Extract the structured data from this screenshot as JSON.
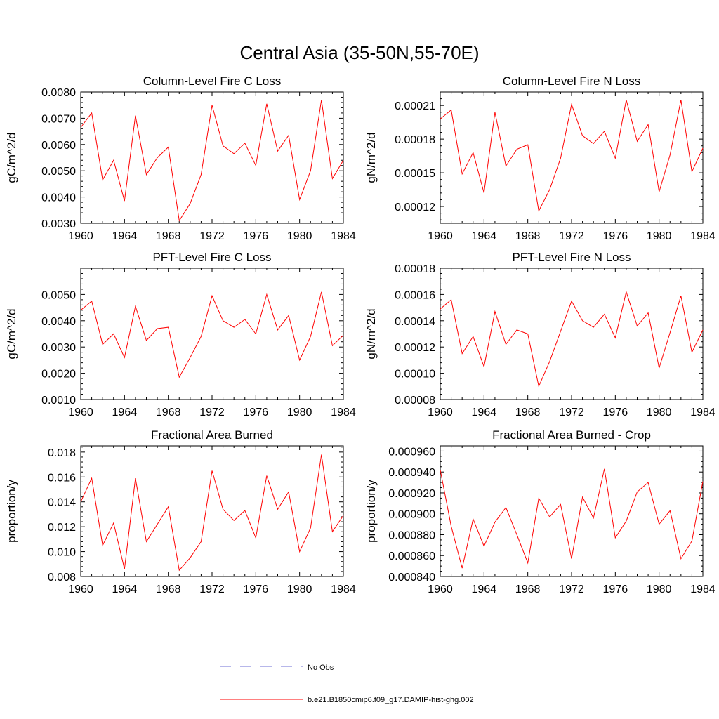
{
  "figure": {
    "title": "Central Asia (35-50N,55-70E)"
  },
  "colors": {
    "model_line": "#ff0000",
    "obs_line": "#6f6fd6",
    "axis": "#000000"
  },
  "legend": {
    "obs_label": "No Obs",
    "model_label": "b.e21.B1850cmip6.f09_g17.DAMIP-hist-ghg.002",
    "placement": "bottom-center"
  },
  "chart_data": [
    {
      "type": "line",
      "title": "Column-Level Fire C Loss",
      "ylabel": "gC/m^2/d",
      "xlim": [
        1960,
        1984
      ],
      "ylim": [
        0.003,
        0.008
      ],
      "xticks": [
        1960,
        1964,
        1968,
        1972,
        1976,
        1980,
        1984
      ],
      "xtick_labels": [
        "1960",
        "1964",
        "1968",
        "1972",
        "1976",
        "1980",
        "1984"
      ],
      "yticks": [
        0.003,
        0.004,
        0.005,
        0.006,
        0.007,
        0.008
      ],
      "ytick_labels": [
        "0.0030",
        "0.0040",
        "0.0050",
        "0.0060",
        "0.0070",
        "0.0080"
      ],
      "yminor": 0.0002,
      "x": [
        1960,
        1961,
        1962,
        1963,
        1964,
        1965,
        1966,
        1967,
        1968,
        1969,
        1970,
        1971,
        1972,
        1973,
        1974,
        1975,
        1976,
        1977,
        1978,
        1979,
        1980,
        1981,
        1982,
        1983,
        1984
      ],
      "values": [
        0.00665,
        0.0072,
        0.00465,
        0.0054,
        0.00385,
        0.0071,
        0.00485,
        0.0055,
        0.0059,
        0.0031,
        0.00375,
        0.00485,
        0.0075,
        0.00595,
        0.00565,
        0.00605,
        0.0052,
        0.00755,
        0.00575,
        0.00635,
        0.0039,
        0.005,
        0.0077,
        0.0047,
        0.0054
      ]
    },
    {
      "type": "line",
      "title": "Column-Level Fire N Loss",
      "ylabel": "gN/m^2/d",
      "xlim": [
        1960,
        1984
      ],
      "ylim": [
        0.000105,
        0.000222
      ],
      "xticks": [
        1960,
        1964,
        1968,
        1972,
        1976,
        1980,
        1984
      ],
      "xtick_labels": [
        "1960",
        "1964",
        "1968",
        "1972",
        "1976",
        "1980",
        "1984"
      ],
      "yticks": [
        0.00012,
        0.00015,
        0.00018,
        0.00021
      ],
      "ytick_labels": [
        "0.00012",
        "0.00015",
        "0.00018",
        "0.00021"
      ],
      "yminor": 6e-06,
      "x": [
        1960,
        1961,
        1962,
        1963,
        1964,
        1965,
        1966,
        1967,
        1968,
        1969,
        1970,
        1971,
        1972,
        1973,
        1974,
        1975,
        1976,
        1977,
        1978,
        1979,
        1980,
        1981,
        1982,
        1983,
        1984
      ],
      "values": [
        0.000198,
        0.000206,
        0.000149,
        0.000168,
        0.000132,
        0.000204,
        0.000156,
        0.000171,
        0.000175,
        0.000116,
        0.000135,
        0.000163,
        0.000211,
        0.000183,
        0.000176,
        0.000187,
        0.000163,
        0.000215,
        0.000178,
        0.000193,
        0.000133,
        0.000166,
        0.000215,
        0.000151,
        0.000172
      ]
    },
    {
      "type": "line",
      "title": "PFT-Level Fire C Loss",
      "ylabel": "gC/m^2/d",
      "xlim": [
        1960,
        1984
      ],
      "ylim": [
        0.001,
        0.006
      ],
      "xticks": [
        1960,
        1964,
        1968,
        1972,
        1976,
        1980,
        1984
      ],
      "xtick_labels": [
        "1960",
        "1964",
        "1968",
        "1972",
        "1976",
        "1980",
        "1984"
      ],
      "yticks": [
        0.001,
        0.002,
        0.003,
        0.004,
        0.005
      ],
      "ytick_labels": [
        "0.0010",
        "0.0020",
        "0.0030",
        "0.0040",
        "0.0050"
      ],
      "yminor": 0.0002,
      "x": [
        1960,
        1961,
        1962,
        1963,
        1964,
        1965,
        1966,
        1967,
        1968,
        1969,
        1970,
        1971,
        1972,
        1973,
        1974,
        1975,
        1976,
        1977,
        1978,
        1979,
        1980,
        1981,
        1982,
        1983,
        1984
      ],
      "values": [
        0.0044,
        0.00475,
        0.0031,
        0.0035,
        0.0026,
        0.00455,
        0.00325,
        0.0037,
        0.00375,
        0.00185,
        0.0026,
        0.0034,
        0.00495,
        0.004,
        0.00375,
        0.00405,
        0.0035,
        0.005,
        0.00365,
        0.0042,
        0.0025,
        0.0034,
        0.0051,
        0.00305,
        0.00345
      ]
    },
    {
      "type": "line",
      "title": "PFT-Level Fire N Loss",
      "ylabel": "gN/m^2/d",
      "xlim": [
        1960,
        1984
      ],
      "ylim": [
        8e-05,
        0.00018
      ],
      "xticks": [
        1960,
        1964,
        1968,
        1972,
        1976,
        1980,
        1984
      ],
      "xtick_labels": [
        "1960",
        "1964",
        "1968",
        "1972",
        "1976",
        "1980",
        "1984"
      ],
      "yticks": [
        8e-05,
        0.0001,
        0.00012,
        0.00014,
        0.00016,
        0.00018
      ],
      "ytick_labels": [
        "0.00008",
        "0.00010",
        "0.00012",
        "0.00014",
        "0.00016",
        "0.00018"
      ],
      "yminor": 4e-06,
      "x": [
        1960,
        1961,
        1962,
        1963,
        1964,
        1965,
        1966,
        1967,
        1968,
        1969,
        1970,
        1971,
        1972,
        1973,
        1974,
        1975,
        1976,
        1977,
        1978,
        1979,
        1980,
        1981,
        1982,
        1983,
        1984
      ],
      "values": [
        0.000149,
        0.000156,
        0.000115,
        0.000128,
        0.000105,
        0.000147,
        0.000122,
        0.000133,
        0.00013,
        9e-05,
        0.000109,
        0.000132,
        0.000155,
        0.00014,
        0.000135,
        0.000145,
        0.000127,
        0.000162,
        0.000136,
        0.000146,
        0.000104,
        0.000131,
        0.000159,
        0.000116,
        0.000133
      ]
    },
    {
      "type": "line",
      "title": "Fractional Area Burned",
      "ylabel": "proportion/y",
      "xlim": [
        1960,
        1984
      ],
      "ylim": [
        0.008,
        0.0185
      ],
      "xticks": [
        1960,
        1964,
        1968,
        1972,
        1976,
        1980,
        1984
      ],
      "xtick_labels": [
        "1960",
        "1964",
        "1968",
        "1972",
        "1976",
        "1980",
        "1984"
      ],
      "yticks": [
        0.008,
        0.01,
        0.012,
        0.014,
        0.016,
        0.018
      ],
      "ytick_labels": [
        "0.008",
        "0.010",
        "0.012",
        "0.014",
        "0.016",
        "0.018"
      ],
      "yminor": 0.0004,
      "x": [
        1960,
        1961,
        1962,
        1963,
        1964,
        1965,
        1966,
        1967,
        1968,
        1969,
        1970,
        1971,
        1972,
        1973,
        1974,
        1975,
        1976,
        1977,
        1978,
        1979,
        1980,
        1981,
        1982,
        1983,
        1984
      ],
      "values": [
        0.014,
        0.0159,
        0.0105,
        0.0123,
        0.0086,
        0.0159,
        0.0108,
        0.0122,
        0.0136,
        0.0085,
        0.0095,
        0.0108,
        0.0165,
        0.0134,
        0.0125,
        0.0133,
        0.0111,
        0.0161,
        0.0134,
        0.0148,
        0.01,
        0.0119,
        0.0178,
        0.0116,
        0.0129
      ]
    },
    {
      "type": "line",
      "title": "Fractional Area Burned - Crop",
      "ylabel": "proportion/y",
      "xlim": [
        1960,
        1984
      ],
      "ylim": [
        0.00084,
        0.000965
      ],
      "xticks": [
        1960,
        1964,
        1968,
        1972,
        1976,
        1980,
        1984
      ],
      "xtick_labels": [
        "1960",
        "1964",
        "1968",
        "1972",
        "1976",
        "1980",
        "1984"
      ],
      "yticks": [
        0.00084,
        0.00086,
        0.00088,
        0.0009,
        0.00092,
        0.00094,
        0.00096
      ],
      "ytick_labels": [
        "0.000840",
        "0.000860",
        "0.000880",
        "0.000900",
        "0.000920",
        "0.000940",
        "0.000960"
      ],
      "yminor": 5e-06,
      "x": [
        1960,
        1961,
        1962,
        1963,
        1964,
        1965,
        1966,
        1967,
        1968,
        1969,
        1970,
        1971,
        1972,
        1973,
        1974,
        1975,
        1976,
        1977,
        1978,
        1979,
        1980,
        1981,
        1982,
        1983,
        1984
      ],
      "values": [
        0.000942,
        0.000888,
        0.000848,
        0.000895,
        0.000869,
        0.000892,
        0.000906,
        0.00088,
        0.000853,
        0.000915,
        0.000897,
        0.000909,
        0.000857,
        0.000916,
        0.000896,
        0.000943,
        0.000877,
        0.000893,
        0.000921,
        0.00093,
        0.00089,
        0.000903,
        0.000857,
        0.000874,
        0.000931
      ]
    }
  ]
}
